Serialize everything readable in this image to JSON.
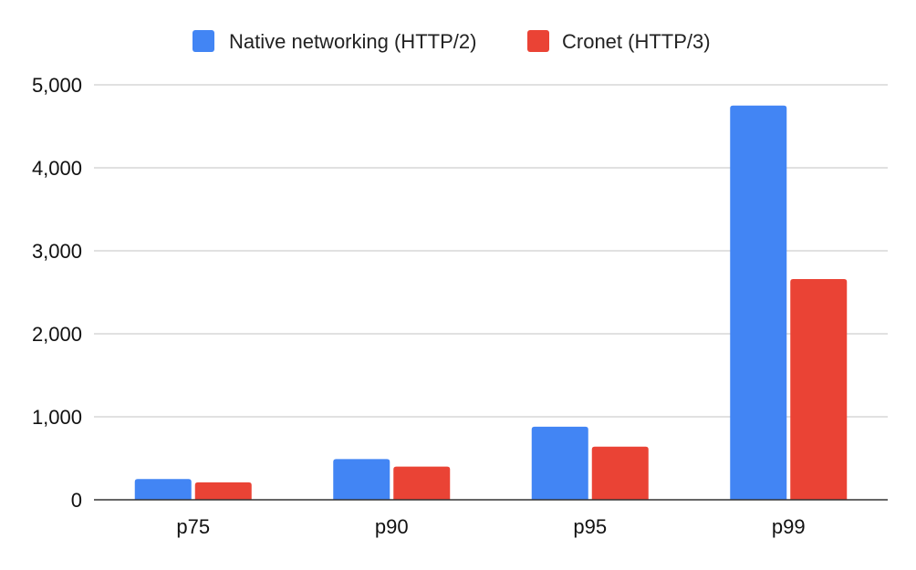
{
  "chart_data": {
    "type": "bar",
    "categories": [
      "p75",
      "p90",
      "p95",
      "p99"
    ],
    "series": [
      {
        "name": "Native networking (HTTP/2)",
        "color": "#4285f4",
        "values": [
          250,
          490,
          880,
          4750
        ]
      },
      {
        "name": "Cronet (HTTP/3)",
        "color": "#ea4335",
        "values": [
          210,
          400,
          640,
          2660
        ]
      }
    ],
    "ylim": [
      0,
      5000
    ],
    "yticks": [
      0,
      1000,
      2000,
      3000,
      4000,
      5000
    ],
    "ytick_labels": [
      "0",
      "1,000",
      "2,000",
      "3,000",
      "4,000",
      "5,000"
    ],
    "grid": true,
    "legend_position": "top-center"
  }
}
